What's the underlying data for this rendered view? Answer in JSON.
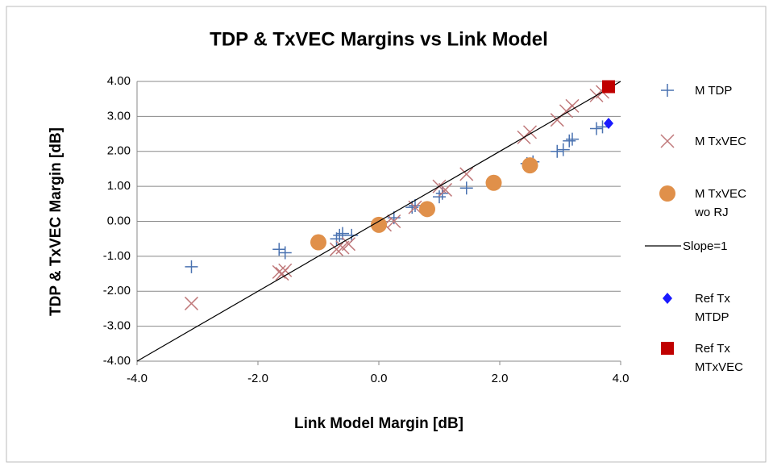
{
  "chart_data": {
    "type": "scatter",
    "title": "TDP & TxVEC Margins vs Link Model",
    "x_label": "Link Model Margin [dB]",
    "y_label": "TDP & TxVEC Margin [dB]",
    "xlim": [
      -4,
      4
    ],
    "ylim": [
      -4,
      4
    ],
    "xticks": [
      {
        "value": -4,
        "label": "-4.0"
      },
      {
        "value": -2,
        "label": "-2.0"
      },
      {
        "value": 0,
        "label": "0.0"
      },
      {
        "value": 2,
        "label": "2.0"
      },
      {
        "value": 4,
        "label": "4.0"
      }
    ],
    "yticks": [
      {
        "value": 4,
        "label": "4.00"
      },
      {
        "value": 3,
        "label": "3.00"
      },
      {
        "value": 2,
        "label": "2.00"
      },
      {
        "value": 1,
        "label": "1.00"
      },
      {
        "value": 0,
        "label": "0.00"
      },
      {
        "value": -1,
        "label": "-1.00"
      },
      {
        "value": -2,
        "label": "-2.00"
      },
      {
        "value": -3,
        "label": "-3.00"
      },
      {
        "value": -4,
        "label": "-4.00"
      }
    ],
    "grid": true,
    "series": [
      {
        "name": "M  TDP",
        "color": "#4a72b0",
        "marker": "plus",
        "x": [
          -3.1,
          -1.65,
          -1.55,
          -0.7,
          -0.65,
          -0.6,
          -0.45,
          0,
          0.25,
          0.55,
          0.6,
          1.0,
          1.05,
          1.45,
          2.45,
          2.55,
          2.95,
          3.05,
          3.15,
          3.2,
          3.6,
          3.7
        ],
        "values": [
          -1.3,
          -0.8,
          -0.9,
          -0.5,
          -0.4,
          -0.35,
          -0.4,
          -0.1,
          0.1,
          0.4,
          0.45,
          0.7,
          0.8,
          0.95,
          1.65,
          1.7,
          2.0,
          2.05,
          2.3,
          2.35,
          2.65,
          2.7
        ]
      },
      {
        "name": "M TxVEC",
        "color": "#c0787a",
        "marker": "x",
        "x": [
          -3.1,
          -1.65,
          -1.6,
          -1.55,
          -0.7,
          -0.6,
          -0.5,
          0.1,
          0.25,
          0.6,
          1.0,
          1.1,
          1.45,
          2.4,
          2.5,
          2.95,
          3.1,
          3.2,
          3.6,
          3.7
        ],
        "values": [
          -2.35,
          -1.45,
          -1.5,
          -1.4,
          -0.8,
          -0.75,
          -0.65,
          -0.1,
          0.0,
          0.4,
          1.0,
          0.9,
          1.35,
          2.4,
          2.55,
          2.9,
          3.15,
          3.3,
          3.6,
          3.7
        ]
      },
      {
        "name": "M TxVEC wo RJ",
        "color": "#e0904a",
        "marker": "circle",
        "x": [
          -1.0,
          0,
          0.8,
          1.9,
          2.5
        ],
        "values": [
          -0.6,
          -0.1,
          0.35,
          1.1,
          1.6
        ]
      },
      {
        "name": "Slope=1",
        "color": "#000000",
        "marker": "line",
        "x": [
          -4,
          4
        ],
        "values": [
          -4,
          4
        ]
      },
      {
        "name": "Ref Tx MTDP",
        "color": "#1a1aff",
        "marker": "diamond",
        "x": [
          3.8
        ],
        "values": [
          2.8
        ]
      },
      {
        "name": "Ref Tx MTxVEC",
        "color": "#c00000",
        "marker": "square",
        "x": [
          3.8
        ],
        "values": [
          3.85
        ]
      }
    ]
  }
}
